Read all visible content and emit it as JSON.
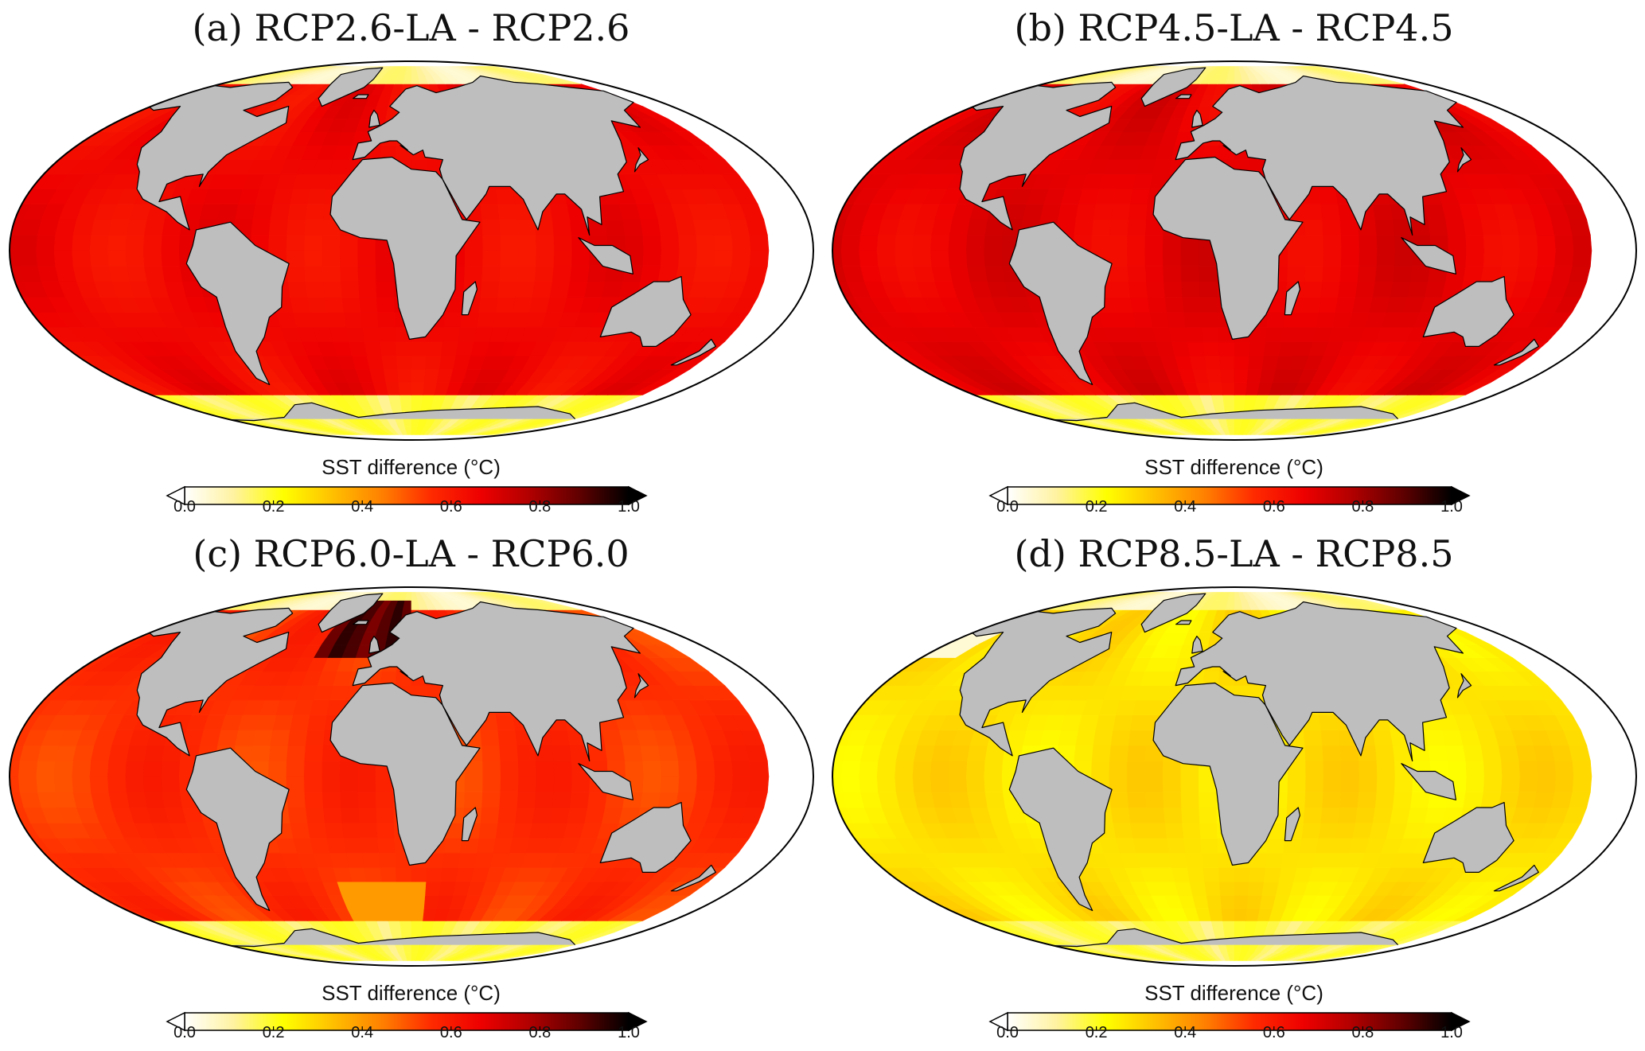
{
  "figure": {
    "panels": [
      {
        "id": "a",
        "title": "(a) RCP2.6-LA - RCP2.6",
        "base_value": 0.65,
        "colorbar_label": "SST difference (°C)"
      },
      {
        "id": "b",
        "title": "(b) RCP4.5-LA - RCP4.5",
        "base_value": 0.68,
        "colorbar_label": "SST difference (°C)"
      },
      {
        "id": "c",
        "title": "(c) RCP6.0-LA - RCP6.0",
        "base_value": 0.55,
        "colorbar_label": "SST difference (°C)"
      },
      {
        "id": "d",
        "title": "(d) RCP8.5-LA - RCP8.5",
        "base_value": 0.27,
        "colorbar_label": "SST difference (°C)"
      }
    ],
    "colorbar": {
      "min": 0.0,
      "max": 1.0,
      "ticks": [
        "0.0",
        "0.2",
        "0.4",
        "0.6",
        "0.8",
        "1.0"
      ],
      "extend": "both",
      "colormap": [
        "#ffffff",
        "#fff2a0",
        "#ffff00",
        "#ffc000",
        "#ff8000",
        "#ff2a00",
        "#ee0000",
        "#b00000",
        "#600000",
        "#000000"
      ]
    },
    "land_color": "#bebebe",
    "coastline_color": "#000000"
  }
}
